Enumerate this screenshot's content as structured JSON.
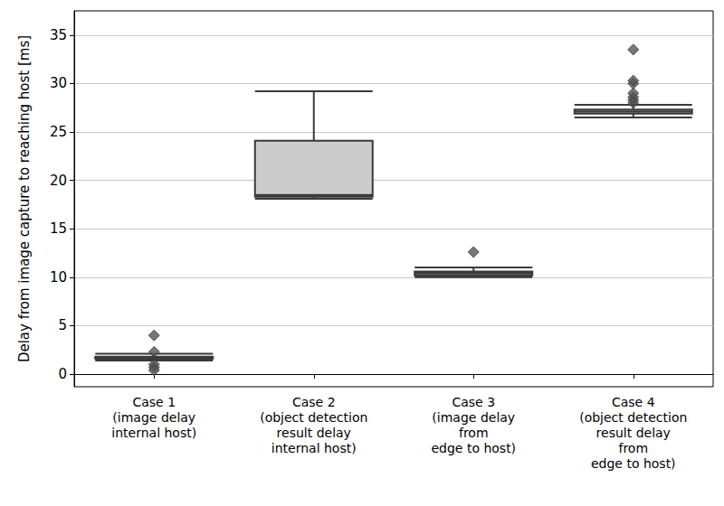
{
  "chart_data": {
    "type": "boxplot",
    "ylabel": "Delay from image capture to reaching host [ms]",
    "categories": [
      "Case 1\n(image delay\ninternal host)",
      "Case 2\n(object detection\nresult delay\ninternal host)",
      "Case 3\n(image delay\nfrom\nedge to host)",
      "Case 4\n(object detection\nresult delay\nfrom\nedge to host)"
    ],
    "boxes": [
      [
        1.4,
        1.6,
        1.7,
        1.8,
        2.1
      ],
      [
        18.1,
        18.3,
        18.5,
        24.1,
        29.2
      ],
      [
        10.0,
        10.2,
        10.4,
        10.6,
        11.0
      ],
      [
        26.5,
        26.9,
        27.1,
        27.3,
        27.8
      ]
    ],
    "outliers": [
      [
        4.0,
        2.3,
        1.0,
        0.7,
        0.4
      ],
      [],
      [
        12.6
      ],
      [
        28.0,
        28.3,
        28.6,
        29.0,
        30.0,
        30.3,
        33.5
      ]
    ],
    "color": "#cccccc",
    "marker": "diamond",
    "ylim": [
      -1.3,
      37.5
    ],
    "yticks": [
      0,
      5,
      10,
      15,
      20,
      25,
      30,
      35
    ],
    "grid": true
  }
}
